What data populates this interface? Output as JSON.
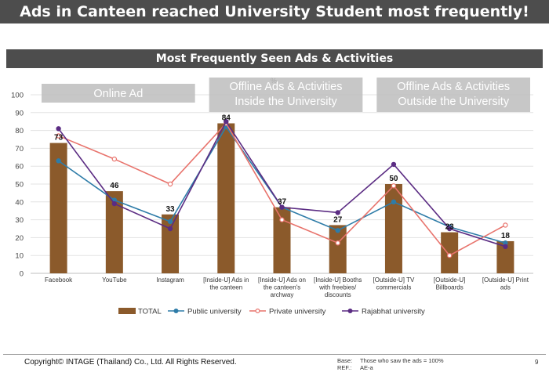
{
  "title": "Ads in Canteen reached University Student most frequently!",
  "subtitle": "Most Frequently Seen Ads & Activities",
  "footer": {
    "copyright": "Copyright© INTAGE (Thailand) Co., Ltd. All Rights Reserved.",
    "base_label": "Base:",
    "base_text": "Those who saw the ads = 100%",
    "ref_label": "REF.:",
    "ref_text": "AE-a",
    "page_number": "9"
  },
  "chart_data": {
    "type": "bar",
    "unit_label": "%",
    "ylim": [
      0,
      100
    ],
    "yticks": [
      0,
      10,
      20,
      30,
      40,
      50,
      60,
      70,
      80,
      90,
      100
    ],
    "grid": true,
    "legend_position": "bottom",
    "categories": [
      [
        "Facebook"
      ],
      [
        "YouTube"
      ],
      [
        "Instagram"
      ],
      [
        "[Inside-U] Ads in",
        "the canteen"
      ],
      [
        "[Inside-U] Ads on",
        "the canteen's",
        "archway"
      ],
      [
        "[Inside-U] Booths",
        "with freebies/",
        "discounts"
      ],
      [
        "[Outside-U] TV",
        "commercials"
      ],
      [
        "[Outside-U]",
        "Billboards"
      ],
      [
        "[Outside-U] Print",
        "ads"
      ]
    ],
    "group_labels": [
      {
        "lines": [
          "Online Ad"
        ],
        "from": 0,
        "to": 2
      },
      {
        "lines": [
          "Offline Ads & Activities",
          "Inside the University"
        ],
        "from": 3,
        "to": 5
      },
      {
        "lines": [
          "Offline Ads & Activities",
          "Outside the University"
        ],
        "from": 6,
        "to": 8
      }
    ],
    "series": [
      {
        "name": "TOTAL",
        "kind": "bar",
        "color": "#8b5a2b",
        "values": [
          73,
          46,
          33,
          84,
          37,
          27,
          50,
          23,
          18
        ],
        "labels": [
          "73",
          "46",
          "33",
          "84",
          "37",
          "27",
          "50",
          "23",
          "18"
        ]
      },
      {
        "name": "Public university",
        "kind": "line",
        "color": "#2e7ca8",
        "marker": "filled",
        "values": [
          63,
          41,
          29,
          82,
          37,
          24,
          40,
          26,
          17
        ]
      },
      {
        "name": "Private university",
        "kind": "line",
        "color": "#e8736c",
        "marker": "hollow",
        "values": [
          77,
          64,
          50,
          84,
          30,
          17,
          49,
          10,
          27
        ]
      },
      {
        "name": "Rajabhat university",
        "kind": "line",
        "color": "#5b2c83",
        "marker": "filled",
        "values": [
          81,
          39,
          25,
          85,
          37,
          34,
          61,
          25,
          15
        ]
      }
    ]
  }
}
